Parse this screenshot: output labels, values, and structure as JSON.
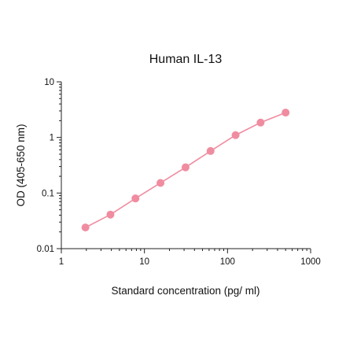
{
  "chart_data": {
    "type": "line",
    "title": "Human IL-13",
    "xlabel": "Standard concentration (pg/ ml)",
    "ylabel": "OD (405-650 nm)",
    "x_scale": "log",
    "y_scale": "log",
    "xlim": [
      1,
      1000
    ],
    "ylim": [
      0.01,
      10
    ],
    "x_ticks": [
      1,
      10,
      100,
      1000
    ],
    "x_tick_labels": [
      "1",
      "10",
      "100",
      "1000"
    ],
    "y_ticks": [
      0.01,
      0.1,
      1,
      10
    ],
    "y_tick_labels": [
      "0.01",
      "0.1",
      "1",
      "10"
    ],
    "grid": false,
    "legend": false,
    "series": [
      {
        "color": "#f08ca0",
        "x": [
          1.95,
          3.9,
          7.8,
          15.6,
          31.25,
          62.5,
          125,
          250,
          500
        ],
        "y": [
          0.024,
          0.041,
          0.08,
          0.152,
          0.29,
          0.57,
          1.1,
          1.85,
          2.8
        ]
      }
    ]
  }
}
